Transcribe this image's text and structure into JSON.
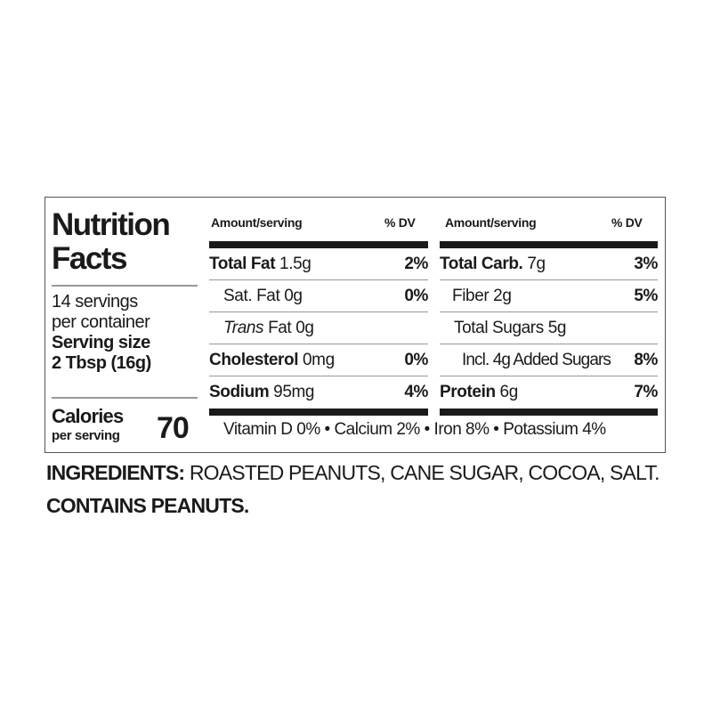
{
  "title_line1": "Nutrition",
  "title_line2": "Facts",
  "servings_line1": "14 servings",
  "servings_line2": "per container",
  "serving_size_label": "Serving size",
  "serving_size_value": "2 Tbsp (16g)",
  "calories_label": "Calories",
  "calories_sub": "per serving",
  "calories_value": "70",
  "header": {
    "amount": "Amount/serving",
    "dv": "% DV"
  },
  "left_rows": [
    {
      "bold": "Total Fat",
      "value": "1.5g",
      "dv": "2%"
    },
    {
      "bold": "",
      "value": "Sat. Fat 0g",
      "dv": "0%"
    },
    {
      "italic": "Trans",
      "value": "Fat 0g",
      "dv": ""
    },
    {
      "bold": "Cholesterol",
      "value": "0mg",
      "dv": "0%"
    },
    {
      "bold": "Sodium",
      "value": "95mg",
      "dv": "4%"
    }
  ],
  "right_rows": [
    {
      "bold": "Total Carb.",
      "value": "7g",
      "dv": "3%"
    },
    {
      "bold": "",
      "value": "Fiber 2g",
      "dv": "5%"
    },
    {
      "bold": "",
      "value": "Total Sugars 5g",
      "dv": ""
    },
    {
      "bold": "",
      "value": "Incl. 4g Added Sugars",
      "dv": "8%"
    },
    {
      "bold": "Protein",
      "value": "6g",
      "dv": "7%"
    }
  ],
  "vitamins": "Vitamin D 0% • Calcium 2% • Iron 8% • Potassium 4%",
  "ingredients_label": "INGREDIENTS:",
  "ingredients": "ROASTED PEANUTS, CANE SUGAR, COCOA, SALT.",
  "allergen": "CONTAINS PEANUTS."
}
